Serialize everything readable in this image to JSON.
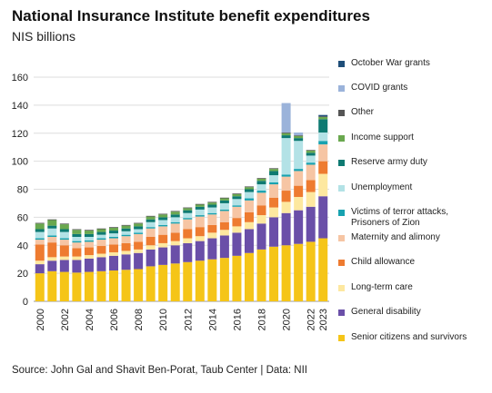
{
  "title": "National Insurance Institute benefit expenditures",
  "subtitle": "NIS billions",
  "source": "Source: John Gal and Shavit Ben-Porat, Taub Center | Data: NII",
  "chart_data": {
    "type": "bar",
    "stacked": true,
    "title": "National Insurance Institute benefit expenditures",
    "subtitle": "NIS billions",
    "ylim": [
      0,
      160
    ],
    "yticks": [
      0,
      20,
      40,
      60,
      80,
      100,
      120,
      140,
      160
    ],
    "grid": true,
    "legend_position": "right",
    "categories": [
      "2000",
      "2001",
      "2002",
      "2003",
      "2004",
      "2005",
      "2006",
      "2007",
      "2008",
      "2009",
      "2010",
      "2011",
      "2012",
      "2013",
      "2014",
      "2015",
      "2016",
      "2017",
      "2018",
      "2019",
      "2020",
      "2021",
      "2022",
      "2023"
    ],
    "xtick_labels": [
      "2000",
      "2002",
      "2004",
      "2006",
      "2008",
      "2010",
      "2012",
      "2014",
      "2016",
      "2018",
      "2020",
      "2022",
      "2023"
    ],
    "series": [
      {
        "name": "Senior citizens and survivors",
        "color": "#f5c518",
        "values": [
          20,
          21.5,
          21,
          20.5,
          21,
          21.5,
          22,
          22.5,
          23,
          25,
          26,
          27,
          28,
          29,
          30,
          31,
          32.5,
          34.5,
          37,
          39,
          40,
          41,
          42.5,
          45
        ]
      },
      {
        "name": "General disability",
        "color": "#6a4fa8",
        "values": [
          6.5,
          7.5,
          8.5,
          9,
          9.5,
          10,
          10.5,
          11,
          11.5,
          12,
          12.5,
          13,
          13.5,
          14,
          15,
          16,
          16.5,
          17,
          18.5,
          21,
          23,
          24,
          25,
          30
        ]
      },
      {
        "name": "Long-term care",
        "color": "#fde8a0",
        "values": [
          2.5,
          2.5,
          2.5,
          2.5,
          2.5,
          2.5,
          2.5,
          2.5,
          2.5,
          3,
          3,
          3,
          3.5,
          3.5,
          4,
          4,
          4.5,
          5,
          6,
          7,
          8,
          9.5,
          10.5,
          16
        ]
      },
      {
        "name": "Child allowance",
        "color": "#ee7b30",
        "values": [
          11.5,
          10.5,
          8,
          6,
          5.5,
          5.5,
          5.5,
          5.5,
          5.5,
          6,
          6,
          6,
          6.5,
          6.5,
          5.5,
          5.5,
          6,
          7,
          7,
          7,
          8,
          8,
          8.5,
          9
        ]
      },
      {
        "name": "Maternity and alimony",
        "color": "#f6c5a4",
        "values": [
          3.5,
          4,
          4,
          4,
          4,
          4.5,
          4.5,
          5,
          5.5,
          6,
          6,
          6.5,
          7,
          7.5,
          7.5,
          8,
          8,
          8.5,
          9,
          9.5,
          10,
          10.5,
          11,
          12
        ]
      },
      {
        "name": "Victims of terror attacks,\nPrisoners of Zion",
        "color": "#17a2b0",
        "values": [
          1,
          1,
          1,
          1,
          1,
          1,
          1,
          1,
          1,
          1,
          1,
          1,
          1,
          1,
          1,
          1,
          1,
          1.5,
          1.5,
          1.5,
          1.5,
          1.5,
          1.5,
          2.5
        ]
      },
      {
        "name": "Unemployment",
        "color": "#b3e2e6",
        "values": [
          4.5,
          5,
          4.5,
          3,
          2.5,
          2.5,
          2.5,
          2.5,
          2.5,
          3.5,
          3.5,
          3.5,
          3.5,
          4,
          4,
          4.5,
          4.5,
          4.5,
          4.5,
          5,
          26,
          20,
          5,
          6
        ]
      },
      {
        "name": "Reserve army duty",
        "color": "#0e7a72",
        "values": [
          2,
          2,
          2,
          2,
          2,
          2,
          2,
          2,
          2,
          2,
          2,
          2,
          2,
          2,
          2,
          2,
          2,
          2,
          2.5,
          3,
          2,
          2,
          2,
          9.5
        ]
      },
      {
        "name": "Income support",
        "color": "#6aa84f",
        "values": [
          4,
          4,
          3.5,
          3,
          2.5,
          2,
          2,
          2,
          2,
          2,
          2,
          2,
          1.5,
          1.5,
          1.5,
          1.5,
          1.5,
          1.5,
          1.5,
          1.5,
          1.5,
          1.5,
          1.5,
          1.5
        ]
      },
      {
        "name": "Other",
        "color": "#555555",
        "values": [
          0.5,
          0.5,
          0.5,
          0.5,
          0.5,
          0.5,
          0.5,
          0.5,
          0.5,
          0.5,
          0.5,
          0.5,
          0.5,
          0.5,
          0.5,
          0.5,
          0.5,
          0.5,
          0.5,
          0.5,
          0.5,
          0.5,
          0.5,
          0.5
        ]
      },
      {
        "name": "COVID grants",
        "color": "#9bb3da",
        "values": [
          0,
          0,
          0,
          0,
          0,
          0,
          0,
          0,
          0,
          0,
          0,
          0,
          0,
          0,
          0,
          0,
          0,
          0,
          0,
          0,
          21,
          2,
          0,
          0
        ]
      },
      {
        "name": "October War grants",
        "color": "#1f4e79",
        "values": [
          0,
          0,
          0,
          0,
          0,
          0,
          0,
          0,
          0,
          0,
          0,
          0,
          0,
          0,
          0,
          0,
          0,
          0,
          0,
          0,
          0,
          0,
          0,
          1
        ]
      }
    ]
  }
}
